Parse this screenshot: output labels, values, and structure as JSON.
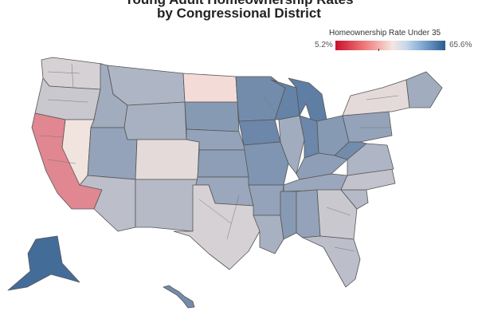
{
  "title": {
    "line1": "Young Adult Homeownership Rates",
    "line2": "by Congressional District"
  },
  "legend": {
    "title": "Homeownership Rate Under 35",
    "min_label": "5.2%",
    "max_label": "65.6%",
    "min_value": 5.2,
    "max_value": 65.6,
    "colors": {
      "low": "#c8102e",
      "mid": "#f5e6e0",
      "high": "#2c5b8f",
      "no_data": "#d9d9d9",
      "border": "#555555"
    }
  },
  "map": {
    "regions": [
      {
        "name": "Washington",
        "rate": 40
      },
      {
        "name": "Oregon",
        "rate": 42
      },
      {
        "name": "California",
        "rate": 22
      },
      {
        "name": "Idaho",
        "rate": 48
      },
      {
        "name": "Nevada",
        "rate": 36
      },
      {
        "name": "Utah",
        "rate": 50
      },
      {
        "name": "Arizona",
        "rate": 44
      },
      {
        "name": "Montana",
        "rate": 46
      },
      {
        "name": "Wyoming",
        "rate": 47
      },
      {
        "name": "Colorado",
        "rate": 38
      },
      {
        "name": "New Mexico",
        "rate": 45
      },
      {
        "name": "North Dakota",
        "rate": 34
      },
      {
        "name": "South Dakota",
        "rate": 52
      },
      {
        "name": "Nebraska",
        "rate": 50
      },
      {
        "name": "Kansas",
        "rate": 51
      },
      {
        "name": "Oklahoma",
        "rate": 49
      },
      {
        "name": "Texas",
        "rate": 40
      },
      {
        "name": "Minnesota",
        "rate": 55
      },
      {
        "name": "Iowa",
        "rate": 56
      },
      {
        "name": "Missouri",
        "rate": 53
      },
      {
        "name": "Arkansas",
        "rate": 50
      },
      {
        "name": "Louisiana",
        "rate": 47
      },
      {
        "name": "Wisconsin",
        "rate": 57
      },
      {
        "name": "Illinois",
        "rate": 48
      },
      {
        "name": "Michigan",
        "rate": 58
      },
      {
        "name": "Indiana",
        "rate": 56
      },
      {
        "name": "Ohio",
        "rate": 52
      },
      {
        "name": "Kentucky",
        "rate": 51
      },
      {
        "name": "Tennessee",
        "rate": 49
      },
      {
        "name": "Mississippi",
        "rate": 52
      },
      {
        "name": "Alabama",
        "rate": 50
      },
      {
        "name": "Georgia",
        "rate": 42
      },
      {
        "name": "Florida",
        "rate": 44
      },
      {
        "name": "South Carolina",
        "rate": 45
      },
      {
        "name": "North Carolina",
        "rate": 43
      },
      {
        "name": "Virginia",
        "rate": 46
      },
      {
        "name": "West Virginia",
        "rate": 55
      },
      {
        "name": "Pennsylvania",
        "rate": 50
      },
      {
        "name": "New York",
        "rate": 38
      },
      {
        "name": "New England",
        "rate": 48
      },
      {
        "name": "Alaska",
        "rate": 62
      },
      {
        "name": "Hawaii",
        "rate": 55
      }
    ]
  }
}
